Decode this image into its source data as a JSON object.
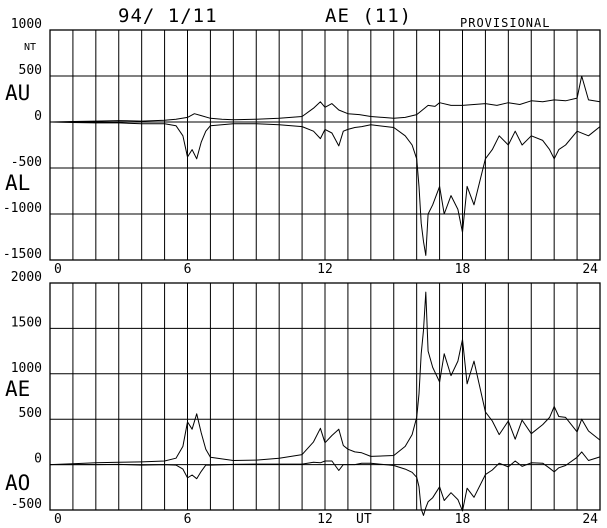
{
  "header": {
    "date": "94/ 1/11",
    "index": "AE (11)",
    "status": "PROVISIONAL"
  },
  "chart_data": [
    {
      "type": "line",
      "title": "",
      "unit": "NT",
      "panel_labels": [
        "AU",
        "AL"
      ],
      "xlabel": "",
      "xlim": [
        0,
        24
      ],
      "ylim": [
        -1500,
        1000
      ],
      "x_ticks": [
        "0",
        "6",
        "12",
        "18",
        "24"
      ],
      "y_ticks": [
        "1000",
        "500",
        "0",
        "-500",
        "-1000",
        "-1500"
      ],
      "grid": true,
      "series": [
        {
          "name": "AU",
          "x": [
            0,
            1,
            2,
            3,
            4,
            5,
            5.5,
            6,
            6.3,
            6.6,
            7,
            7.5,
            8,
            9,
            10,
            11,
            11.5,
            11.8,
            12,
            12.3,
            12.6,
            13,
            13.5,
            14,
            15,
            15.5,
            16,
            16.2,
            16.5,
            16.8,
            17,
            17.5,
            18,
            18.5,
            19,
            19.5,
            20,
            20.5,
            21,
            21.5,
            22,
            22.5,
            23,
            23.2,
            23.5,
            24
          ],
          "y": [
            0,
            5,
            10,
            15,
            10,
            20,
            30,
            50,
            90,
            70,
            40,
            30,
            25,
            30,
            40,
            60,
            150,
            220,
            160,
            200,
            130,
            90,
            80,
            60,
            40,
            50,
            80,
            120,
            180,
            170,
            210,
            180,
            180,
            190,
            200,
            180,
            210,
            190,
            230,
            220,
            240,
            230,
            260,
            500,
            240,
            220
          ]
        },
        {
          "name": "AL",
          "x": [
            0,
            1,
            2,
            3,
            4,
            5,
            5.5,
            5.8,
            6,
            6.2,
            6.4,
            6.6,
            6.8,
            7,
            8,
            9,
            10,
            11,
            11.5,
            11.8,
            12,
            12.3,
            12.6,
            12.8,
            13,
            13.3,
            13.6,
            14,
            15,
            15.5,
            15.8,
            16,
            16.1,
            16.2,
            16.3,
            16.4,
            16.5,
            16.7,
            17,
            17.2,
            17.5,
            17.8,
            18,
            18.2,
            18.5,
            19,
            19.3,
            19.6,
            20,
            20.3,
            20.6,
            21,
            21.5,
            21.8,
            22,
            22.2,
            22.5,
            23,
            23.5,
            24
          ],
          "y": [
            0,
            -5,
            -10,
            -10,
            -20,
            -20,
            -40,
            -150,
            -380,
            -300,
            -400,
            -220,
            -100,
            -40,
            -20,
            -20,
            -30,
            -50,
            -100,
            -180,
            -80,
            -120,
            -260,
            -100,
            -80,
            -60,
            -50,
            -30,
            -60,
            -150,
            -250,
            -400,
            -700,
            -1100,
            -1300,
            -1450,
            -1000,
            -900,
            -700,
            -1000,
            -800,
            -950,
            -1200,
            -700,
            -900,
            -400,
            -300,
            -150,
            -250,
            -100,
            -250,
            -150,
            -200,
            -300,
            -400,
            -300,
            -250,
            -100,
            -150,
            -50
          ]
        }
      ]
    },
    {
      "type": "line",
      "title": "",
      "unit": "NT",
      "panel_labels": [
        "AE",
        "AO"
      ],
      "xlabel": "UT",
      "xlim": [
        0,
        24
      ],
      "ylim": [
        -500,
        2000
      ],
      "x_ticks": [
        "0",
        "6",
        "12",
        "18",
        "24"
      ],
      "y_ticks": [
        "2000",
        "1500",
        "1000",
        "500",
        "0",
        "-500"
      ],
      "grid": true,
      "series": [
        {
          "name": "AE",
          "x": [
            0,
            1,
            2,
            3,
            4,
            5,
            5.5,
            5.8,
            6,
            6.2,
            6.4,
            6.6,
            6.8,
            7,
            8,
            9,
            10,
            11,
            11.5,
            11.8,
            12,
            12.3,
            12.6,
            12.8,
            13,
            13.3,
            13.6,
            14,
            15,
            15.5,
            15.8,
            16,
            16.1,
            16.2,
            16.3,
            16.4,
            16.5,
            16.7,
            17,
            17.2,
            17.5,
            17.8,
            18,
            18.2,
            18.5,
            19,
            19.3,
            19.6,
            20,
            20.3,
            20.6,
            21,
            21.5,
            21.8,
            22,
            22.2,
            22.5,
            23,
            23.2,
            23.5,
            24
          ],
          "y": [
            0,
            10,
            20,
            25,
            30,
            40,
            70,
            200,
            470,
            390,
            560,
            350,
            170,
            80,
            45,
            50,
            70,
            110,
            250,
            400,
            240,
            320,
            390,
            210,
            170,
            140,
            130,
            90,
            100,
            200,
            330,
            520,
            780,
            1220,
            1480,
            1900,
            1250,
            1070,
            910,
            1220,
            980,
            1140,
            1380,
            890,
            1140,
            580,
            480,
            330,
            480,
            280,
            490,
            340,
            440,
            520,
            640,
            530,
            520,
            360,
            500,
            370,
            270
          ]
        },
        {
          "name": "AO",
          "x": [
            0,
            1,
            2,
            3,
            4,
            5,
            5.5,
            5.8,
            6,
            6.2,
            6.4,
            6.6,
            6.8,
            7,
            8,
            9,
            10,
            11,
            11.5,
            11.8,
            12,
            12.3,
            12.6,
            12.8,
            13,
            13.3,
            13.6,
            14,
            15,
            15.5,
            15.8,
            16,
            16.1,
            16.2,
            16.3,
            16.4,
            16.5,
            16.7,
            17,
            17.2,
            17.5,
            17.8,
            18,
            18.2,
            18.5,
            19,
            19.3,
            19.6,
            20,
            20.3,
            20.6,
            21,
            21.5,
            21.8,
            22,
            22.2,
            22.5,
            23,
            23.2,
            23.5,
            24
          ],
          "y": [
            0,
            0,
            0,
            2,
            -5,
            0,
            -5,
            -50,
            -145,
            -115,
            -155,
            -75,
            -5,
            -5,
            2,
            5,
            5,
            5,
            25,
            20,
            40,
            40,
            -65,
            0,
            0,
            0,
            15,
            15,
            -10,
            -50,
            -85,
            -140,
            -245,
            -490,
            -560,
            -475,
            -410,
            -365,
            -245,
            -395,
            -310,
            -385,
            -510,
            -260,
            -360,
            -110,
            -60,
            15,
            -25,
            40,
            -20,
            20,
            15,
            -40,
            -80,
            -35,
            -10,
            80,
            140,
            45,
            85
          ]
        }
      ]
    }
  ]
}
